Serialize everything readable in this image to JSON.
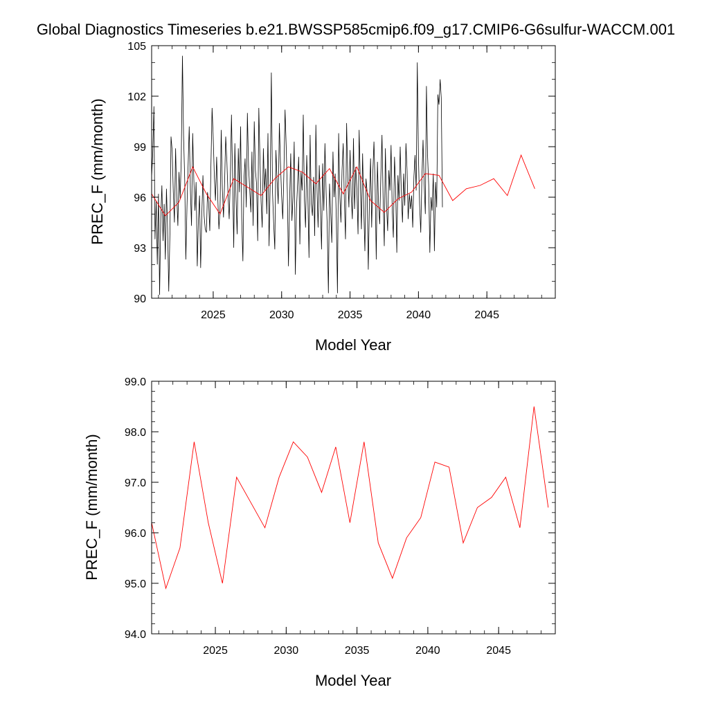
{
  "title": "Global Diagnostics Timeseries b.e21.BWSSP585cmip6.f09_g17.CMIP6-G6sulfur-WACCM.001",
  "colors": {
    "monthly": "#000000",
    "annual": "#ff0000"
  },
  "chart_data": [
    {
      "type": "line",
      "xlabel": "Model Year",
      "ylabel": "PREC_F (mm/month)",
      "xlim": [
        2020.5,
        2050.0
      ],
      "ylim": [
        90,
        105
      ],
      "xticks": [
        2025,
        2030,
        2035,
        2040,
        2045
      ],
      "xtick_labels": [
        "2025",
        "2030",
        "2035",
        "2040",
        "2045"
      ],
      "yticks": [
        90,
        93,
        96,
        99,
        102,
        105
      ],
      "ytick_labels": [
        "90",
        "93",
        "96",
        "99",
        "102",
        "105"
      ],
      "series": [
        {
          "key": "monthly",
          "color": "#000000",
          "x_start": 2020.5,
          "x_step": 0.083333,
          "values": [
            97.2,
            98.6,
            101.4,
            93.5,
            95.8,
            92.0,
            96.2,
            90.2,
            94.8,
            96.7,
            93.4,
            95.6,
            92.3,
            96.5,
            94.1,
            90.4,
            93.8,
            99.6,
            98.8,
            96.3,
            94.5,
            98.9,
            96.1,
            94.3,
            97.5,
            95.9,
            98.3,
            104.4,
            99.7,
            97.0,
            92.3,
            95.5,
            97.9,
            100.2,
            96.4,
            94.3,
            99.8,
            97.1,
            95.2,
            96.9,
            91.9,
            94.6,
            96.1,
            91.8,
            95.0,
            97.3,
            94.9,
            94.1,
            93.9,
            96.3,
            95.7,
            94.0,
            97.8,
            101.3,
            99.6,
            97.2,
            95.8,
            98.4,
            96.0,
            94.1,
            95.3,
            100.0,
            96.5,
            94.8,
            96.9,
            99.6,
            98.1,
            96.2,
            94.7,
            97.0,
            100.9,
            97.3,
            93.0,
            99.2,
            95.9,
            93.8,
            98.9,
            96.3,
            100.2,
            94.7,
            92.2,
            97.1,
            98.3,
            95.4,
            101.0,
            97.8,
            96.5,
            95.1,
            98.7,
            94.3,
            100.5,
            97.6,
            96.8,
            93.4,
            101.3,
            98.2,
            95.7,
            94.2,
            98.9,
            96.4,
            97.7,
            95.0,
            99.8,
            93.1,
            96.9,
            103.4,
            96.3,
            94.5,
            92.9,
            98.8,
            97.0,
            95.6,
            100.4,
            98.0,
            96.1,
            94.7,
            97.4,
            101.2,
            99.1,
            96.3,
            91.9,
            95.8,
            98.6,
            94.6,
            96.0,
            99.3,
            91.4,
            95.3,
            96.8,
            98.4,
            93.2,
            97.5,
            96.4,
            100.9,
            95.8,
            94.2,
            98.5,
            96.1,
            92.4,
            99.7,
            95.6,
            94.9,
            97.2,
            93.7,
            100.3,
            96.6,
            94.2,
            97.9,
            95.6,
            92.9,
            98.0,
            95.2,
            99.2,
            96.3,
            94.3,
            90.3,
            96.8,
            95.1,
            93.3,
            98.7,
            96.0,
            97.4,
            94.6,
            90.3,
            99.8,
            96.2,
            94.5,
            97.6,
            99.2,
            95.9,
            93.5,
            100.4,
            97.2,
            95.4,
            98.8,
            96.1,
            94.7,
            99.5,
            95.3,
            97.8,
            96.5,
            93.8,
            100.0,
            96.9,
            94.1,
            98.6,
            95.4,
            92.8,
            97.1,
            96.3,
            91.7,
            95.8,
            98.3,
            94.2,
            97.5,
            99.3,
            96.7,
            92.3,
            98.1,
            95.6,
            94.4,
            97.2,
            99.7,
            96.0,
            93.1,
            98.9,
            95.5,
            94.0,
            97.6,
            96.4,
            99.1,
            95.2,
            93.6,
            98.4,
            96.6,
            92.7,
            97.3,
            95.8,
            99.0,
            96.2,
            94.5,
            97.4,
            95.5,
            99.2,
            97.6,
            94.7,
            96.2,
            95.3,
            96.1,
            94.2,
            97.2,
            98.5,
            96.4,
            104.0,
            98.3,
            95.6,
            93.9,
            97.1,
            99.4,
            96.8,
            95.0,
            102.6,
            98.5,
            96.7,
            92.7,
            96.0,
            95.2,
            97.4,
            92.8,
            96.9,
            95.4,
            102.1,
            101.5,
            103.0,
            101.9,
            95.4
          ]
        },
        {
          "key": "annual",
          "color": "#ff0000",
          "x": [
            2020.5,
            2021.5,
            2022.5,
            2023.5,
            2024.5,
            2025.5,
            2026.5,
            2027.5,
            2028.5,
            2029.5,
            2030.5,
            2031.5,
            2032.5,
            2033.5,
            2034.5,
            2035.5,
            2036.5,
            2037.5,
            2038.5,
            2039.5,
            2040.5,
            2041.5,
            2042.5,
            2043.5,
            2044.5,
            2045.5,
            2046.5,
            2047.5,
            2048.5
          ],
          "values": [
            96.2,
            94.9,
            95.7,
            97.8,
            96.2,
            95.0,
            97.1,
            96.6,
            96.1,
            97.1,
            97.8,
            97.5,
            96.8,
            97.7,
            96.2,
            97.8,
            95.8,
            95.1,
            95.9,
            96.3,
            97.4,
            97.3,
            95.8,
            96.5,
            96.7,
            97.1,
            96.1,
            98.5,
            96.5
          ]
        }
      ]
    },
    {
      "type": "line",
      "xlabel": "Model Year",
      "ylabel": "PREC_F (mm/month)",
      "xlim": [
        2020.5,
        2049.0
      ],
      "ylim": [
        94.0,
        99.0
      ],
      "xticks": [
        2025,
        2030,
        2035,
        2040,
        2045
      ],
      "xtick_labels": [
        "2025",
        "2030",
        "2035",
        "2040",
        "2045"
      ],
      "yticks": [
        94,
        95,
        96,
        97,
        98,
        99
      ],
      "ytick_labels": [
        "94.0",
        "95.0",
        "96.0",
        "97.0",
        "98.0",
        "99.0"
      ],
      "series": [
        {
          "key": "annual",
          "color": "#ff0000",
          "x": [
            2020.5,
            2021.5,
            2022.5,
            2023.5,
            2024.5,
            2025.5,
            2026.5,
            2027.5,
            2028.5,
            2029.5,
            2030.5,
            2031.5,
            2032.5,
            2033.5,
            2034.5,
            2035.5,
            2036.5,
            2037.5,
            2038.5,
            2039.5,
            2040.5,
            2041.5,
            2042.5,
            2043.5,
            2044.5,
            2045.5,
            2046.5,
            2047.5,
            2048.5
          ],
          "values": [
            96.2,
            94.9,
            95.7,
            97.8,
            96.2,
            95.0,
            97.1,
            96.6,
            96.1,
            97.1,
            97.8,
            97.5,
            96.8,
            97.7,
            96.2,
            97.8,
            95.8,
            95.1,
            95.9,
            96.3,
            97.4,
            97.3,
            95.8,
            96.5,
            96.7,
            97.1,
            96.1,
            98.5,
            96.5
          ]
        }
      ]
    }
  ]
}
